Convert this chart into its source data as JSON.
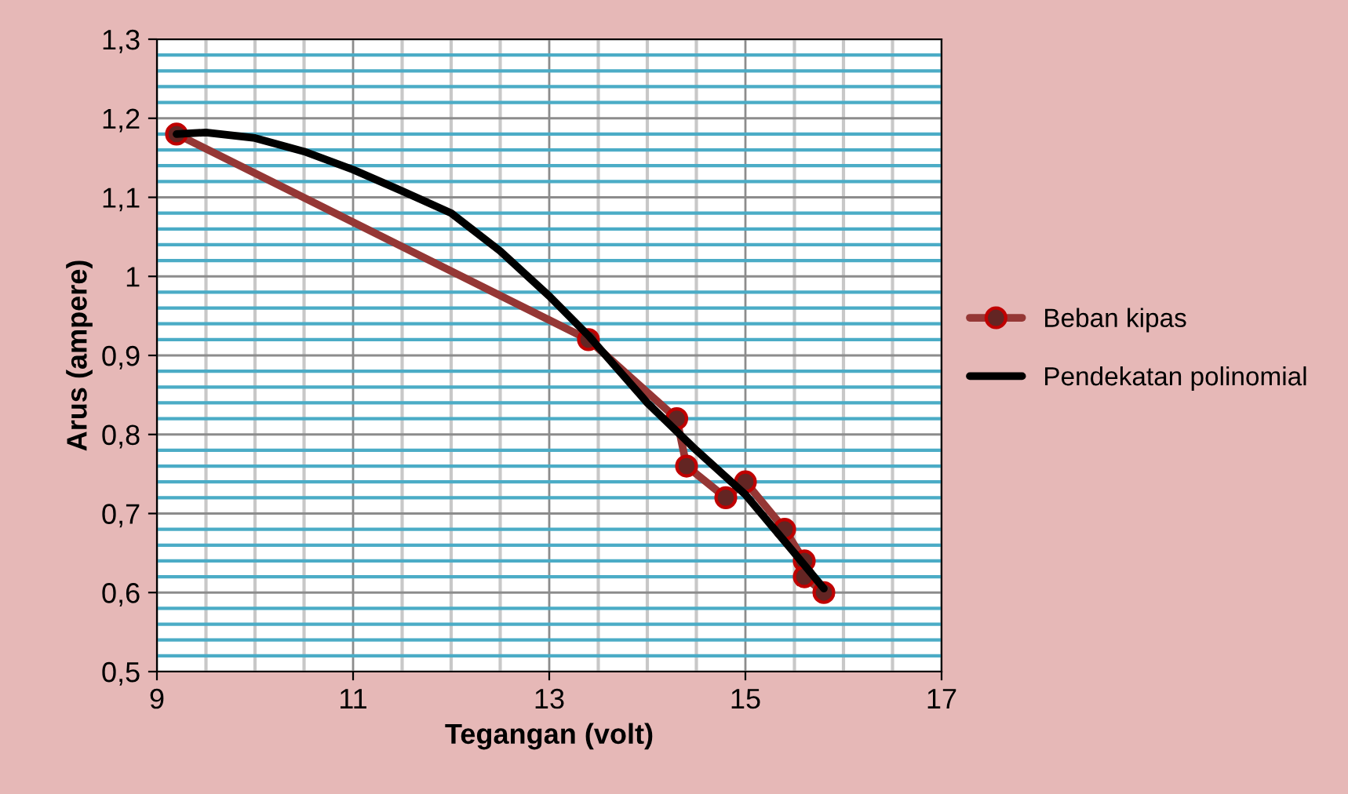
{
  "chart_data": {
    "type": "line",
    "xlabel": "Tegangan (volt)",
    "ylabel": "Arus (ampere)",
    "xlim": [
      9,
      17
    ],
    "xticks": [
      9,
      {
        "value": 9.5,
        "label": null
      },
      {
        "value": 10,
        "label": null
      },
      {
        "value": 10.5,
        "label": null
      },
      11,
      {
        "value": 11.5,
        "label": null
      },
      {
        "value": 12,
        "label": null
      },
      {
        "value": 12.5,
        "label": null
      },
      13,
      {
        "value": 13.5,
        "label": null
      },
      {
        "value": 14,
        "label": null
      },
      {
        "value": 14.5,
        "label": null
      },
      15,
      {
        "value": 15.5,
        "label": null
      },
      {
        "value": 16,
        "label": null
      },
      {
        "value": 16.5,
        "label": null
      },
      17
    ],
    "ylim": [
      0.5,
      1.3
    ],
    "yticks": [
      {
        "value": 0.5,
        "label": "0,5"
      },
      {
        "value": 0.52,
        "label": null
      },
      {
        "value": 0.54,
        "label": null
      },
      {
        "value": 0.56,
        "label": null
      },
      {
        "value": 0.58,
        "label": null
      },
      {
        "value": 0.6,
        "label": "0,6"
      },
      {
        "value": 0.62,
        "label": null
      },
      {
        "value": 0.64,
        "label": null
      },
      {
        "value": 0.66,
        "label": null
      },
      {
        "value": 0.68,
        "label": null
      },
      {
        "value": 0.7,
        "label": "0,7"
      },
      {
        "value": 0.72,
        "label": null
      },
      {
        "value": 0.74,
        "label": null
      },
      {
        "value": 0.76,
        "label": null
      },
      {
        "value": 0.78,
        "label": null
      },
      {
        "value": 0.8,
        "label": "0,8"
      },
      {
        "value": 0.82,
        "label": null
      },
      {
        "value": 0.84,
        "label": null
      },
      {
        "value": 0.86,
        "label": null
      },
      {
        "value": 0.88,
        "label": null
      },
      {
        "value": 0.9,
        "label": "0,9"
      },
      {
        "value": 0.92,
        "label": null
      },
      {
        "value": 0.94,
        "label": null
      },
      {
        "value": 0.96,
        "label": null
      },
      {
        "value": 0.98,
        "label": null
      },
      {
        "value": 1,
        "label": "1"
      },
      {
        "value": 1.02,
        "label": null
      },
      {
        "value": 1.04,
        "label": null
      },
      {
        "value": 1.06,
        "label": null
      },
      {
        "value": 1.08,
        "label": null
      },
      {
        "value": 1.1,
        "label": "1,1"
      },
      {
        "value": 1.12,
        "label": null
      },
      {
        "value": 1.14,
        "label": null
      },
      {
        "value": 1.16,
        "label": null
      },
      {
        "value": 1.18,
        "label": null
      },
      {
        "value": 1.2,
        "label": "1,2"
      },
      {
        "value": 1.22,
        "label": null
      },
      {
        "value": 1.24,
        "label": null
      },
      {
        "value": 1.26,
        "label": null
      },
      {
        "value": 1.28,
        "label": null
      },
      {
        "value": 1.3,
        "label": "1,3"
      }
    ],
    "grid": true,
    "legend": "right",
    "series": [
      {
        "name": "Beban kipas",
        "color": "#953735",
        "marker": "circle",
        "x": [
          9.2,
          13.4,
          14.3,
          14.4,
          14.8,
          15.0,
          15.4,
          15.6,
          15.6,
          15.8
        ],
        "values": [
          1.18,
          0.92,
          0.82,
          0.76,
          0.72,
          0.74,
          0.68,
          0.64,
          0.62,
          0.6
        ]
      },
      {
        "name": "Pendekatan polinomial",
        "color": "#000000",
        "marker": "none",
        "x": [
          9.2,
          9.5,
          10,
          10.5,
          11,
          11.5,
          12,
          12.5,
          13,
          13.4,
          14,
          14.5,
          15,
          15.5,
          15.8
        ],
        "values": [
          1.18,
          1.182,
          1.175,
          1.158,
          1.135,
          1.108,
          1.08,
          1.032,
          0.975,
          0.925,
          0.84,
          0.78,
          0.724,
          0.65,
          0.605
        ]
      }
    ]
  }
}
